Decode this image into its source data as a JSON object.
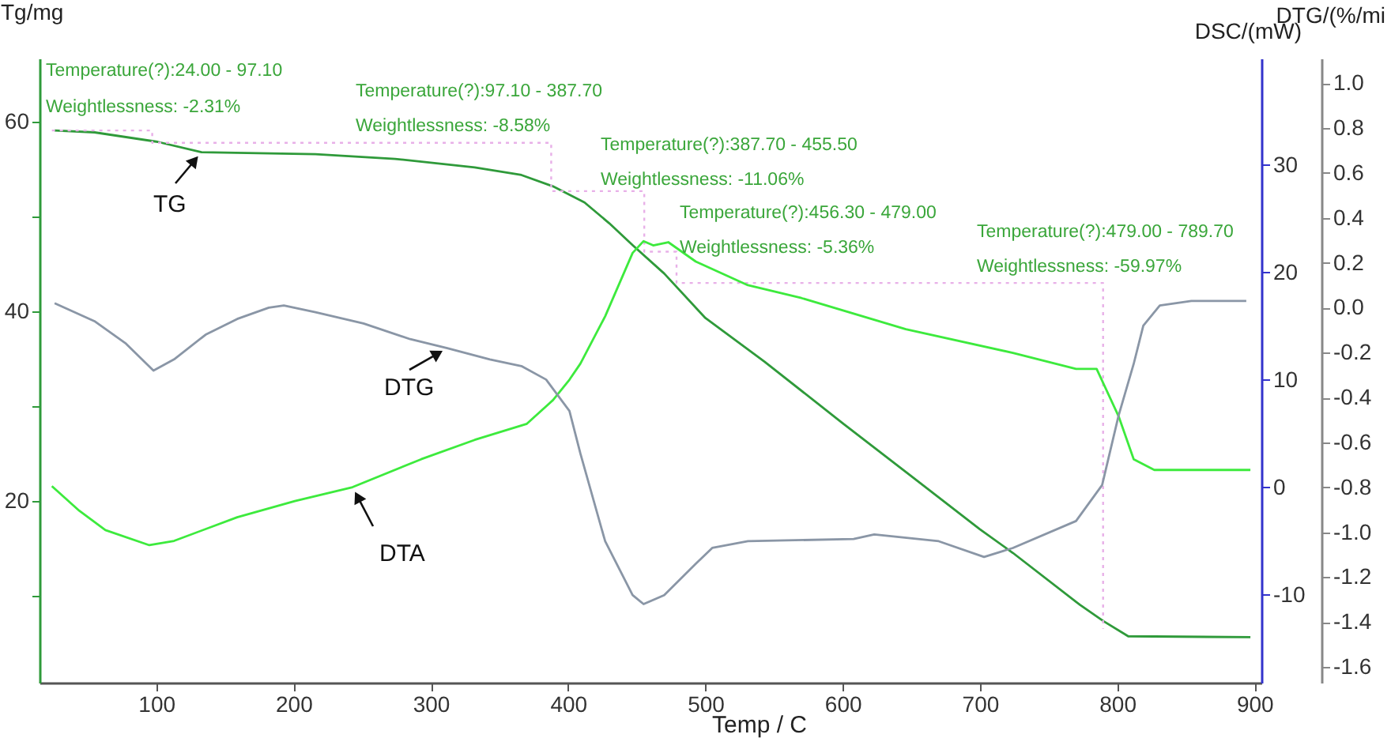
{
  "chart_data": {
    "type": "line",
    "xlabel": "Temp / C",
    "ylabel": "Tg/mg",
    "y2label": "DSC/(mW)",
    "y3label": "DTG/(%/mi",
    "xlim": [
      15,
      905
    ],
    "xticks": [
      100,
      200,
      300,
      400,
      500,
      600,
      700,
      800,
      900
    ],
    "ylim": [
      0.8,
      66.7
    ],
    "yticks": [
      {
        "value": 10,
        "label": null
      },
      20,
      {
        "value": 30,
        "label": null
      },
      40,
      {
        "value": 50,
        "label": null
      },
      60
    ],
    "y2lim": [
      -18.2,
      39.9
    ],
    "y2ticks": [
      -10,
      0,
      10,
      20,
      30
    ],
    "y3lim": [
      -1.67,
      1.11
    ],
    "y3ticks": [
      {
        "value": -1.6,
        "label": "-1.6"
      },
      {
        "value": -1.4,
        "label": "-1.4"
      },
      {
        "value": -1.2,
        "label": "-1.2"
      },
      {
        "value": -1.0,
        "label": "-1.0"
      },
      {
        "value": -0.8,
        "label": "-0.8"
      },
      {
        "value": -0.6,
        "label": "-0.6"
      },
      {
        "value": -0.4,
        "label": "-0.4"
      },
      {
        "value": -0.2,
        "label": "-0.2"
      },
      {
        "value": 0.0,
        "label": "0.0"
      },
      {
        "value": 0.2,
        "label": "0.2"
      },
      {
        "value": 0.4,
        "label": "0.4"
      },
      {
        "value": 0.6,
        "label": "0.6"
      },
      {
        "value": 0.8,
        "label": "0.8"
      },
      {
        "value": 1.0,
        "label": "1.0"
      }
    ],
    "grid": false,
    "marker": "none",
    "line_style": "solid",
    "series": [
      {
        "name": "TG",
        "color": "#2f9a3a",
        "axis": "y",
        "x": [
          26,
          55,
          101,
          133,
          216,
          274,
          332,
          366,
          389,
          412,
          430,
          447,
          470,
          500,
          543,
          600,
          650,
          700,
          724,
          773,
          790,
          808,
          897
        ],
        "values": [
          59.1,
          58.9,
          57.9,
          56.8,
          56.6,
          56.1,
          55.2,
          54.4,
          53.2,
          51.5,
          49.3,
          47.0,
          44.0,
          39.3,
          34.7,
          28.2,
          22.6,
          17.0,
          14.5,
          9.0,
          7.3,
          5.7,
          5.6
        ]
      },
      {
        "name": "DTG",
        "color": "#8a96a6",
        "axis": "y3",
        "x": [
          26,
          55,
          78,
          98,
          113,
          136,
          159,
          182,
          193,
          216,
          251,
          285,
          312,
          343,
          366,
          384,
          401,
          409,
          427,
          447,
          455,
          470,
          493,
          505,
          531,
          608,
          623,
          670,
          703,
          724,
          770,
          789,
          801,
          812,
          819,
          831,
          854,
          894
        ],
        "values": [
          0.02,
          -0.06,
          -0.16,
          -0.28,
          -0.23,
          -0.12,
          -0.05,
          0.0,
          0.01,
          -0.02,
          -0.07,
          -0.14,
          -0.18,
          -0.23,
          -0.26,
          -0.32,
          -0.46,
          -0.65,
          -1.04,
          -1.28,
          -1.32,
          -1.28,
          -1.14,
          -1.07,
          -1.04,
          -1.03,
          -1.01,
          -1.04,
          -1.11,
          -1.07,
          -0.95,
          -0.79,
          -0.48,
          -0.25,
          -0.08,
          0.01,
          0.03,
          0.03
        ]
      },
      {
        "name": "DTA",
        "color": "#3dea3d",
        "axis": "y2",
        "x": [
          24,
          44,
          63,
          95,
          113,
          159,
          201,
          243,
          293,
          332,
          370,
          389,
          401,
          409,
          427,
          447,
          455,
          462,
          473,
          493,
          531,
          570,
          646,
          724,
          770,
          785,
          801,
          812,
          827,
          897
        ],
        "values": [
          0.1,
          -2.2,
          -4.0,
          -5.4,
          -5.0,
          -2.8,
          -1.3,
          0.0,
          2.6,
          4.4,
          5.9,
          8.1,
          10.0,
          11.5,
          15.9,
          21.8,
          22.9,
          22.5,
          22.8,
          21.0,
          18.8,
          17.6,
          14.7,
          12.5,
          11.0,
          11.0,
          6.6,
          2.6,
          1.6,
          1.6
        ]
      },
      {
        "type": "step",
        "color": "#e8b0e8",
        "axis": "y",
        "line_style": "dotted",
        "x": [
          24,
          97.1,
          387.7,
          455.5,
          479,
          789.7
        ],
        "values": [
          59.1,
          57.8,
          52.7,
          46.3,
          43.0,
          6.5
        ]
      }
    ],
    "annotations": [
      "Temperature(?):24.00 - 97.10",
      "Weightlessness: -2.31%",
      "Temperature(?):97.10 - 387.70",
      "Weightlessness: -8.58%",
      "Temperature(?):387.70 - 455.50",
      "Weightlessness: -11.06%",
      "Temperature(?):456.30 - 479.00",
      "Weightlessness: -5.36%",
      "Temperature(?):479.00 - 789.70",
      "Weightlessness: -59.97%"
    ]
  }
}
